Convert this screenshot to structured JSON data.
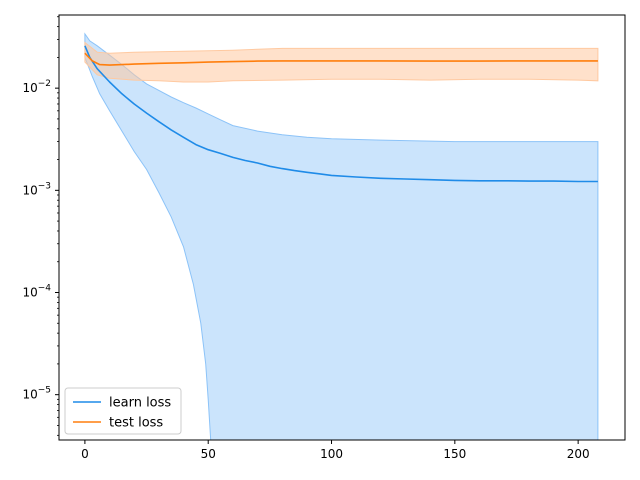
{
  "chart_data": {
    "type": "line",
    "title": "",
    "xlabel": "",
    "ylabel": "",
    "yscale": "log",
    "xlim": [
      -10.5,
      219
    ],
    "ylim": [
      3.6e-06,
      0.052
    ],
    "grid": false,
    "legend_position": "lower-left",
    "x_ticks": [
      0,
      50,
      100,
      150,
      200
    ],
    "x_tick_labels": [
      "0",
      "50",
      "100",
      "150",
      "200"
    ],
    "y_ticks": [
      1e-05,
      0.0001,
      0.001,
      0.01
    ],
    "y_tick_labels": [
      {
        "base": "10",
        "exp": "−5"
      },
      {
        "base": "10",
        "exp": "−4"
      },
      {
        "base": "10",
        "exp": "−3"
      },
      {
        "base": "10",
        "exp": "−2"
      }
    ],
    "series": [
      {
        "name": "learn loss",
        "color": "#1f8be8",
        "band_color": "#8cc3f8",
        "points": [
          [
            0,
            0.026
          ],
          [
            2,
            0.02
          ],
          [
            5,
            0.0155
          ],
          [
            10,
            0.0115
          ],
          [
            15,
            0.0088
          ],
          [
            20,
            0.007
          ],
          [
            25,
            0.0057
          ],
          [
            30,
            0.0047
          ],
          [
            35,
            0.0039
          ],
          [
            40,
            0.0033
          ],
          [
            45,
            0.0028
          ],
          [
            50,
            0.0025
          ],
          [
            55,
            0.0023
          ],
          [
            60,
            0.0021
          ],
          [
            65,
            0.00196
          ],
          [
            70,
            0.00185
          ],
          [
            75,
            0.00172
          ],
          [
            80,
            0.00163
          ],
          [
            85,
            0.00156
          ],
          [
            90,
            0.0015
          ],
          [
            95,
            0.00145
          ],
          [
            100,
            0.0014
          ],
          [
            110,
            0.00135
          ],
          [
            120,
            0.00131
          ],
          [
            130,
            0.00129
          ],
          [
            140,
            0.00127
          ],
          [
            150,
            0.00125
          ],
          [
            160,
            0.00124
          ],
          [
            170,
            0.00124
          ],
          [
            180,
            0.00123
          ],
          [
            190,
            0.00123
          ],
          [
            200,
            0.00122
          ],
          [
            208,
            0.00122
          ]
        ],
        "upper": [
          [
            0,
            0.034
          ],
          [
            2,
            0.029
          ],
          [
            5,
            0.026
          ],
          [
            10,
            0.021
          ],
          [
            15,
            0.017
          ],
          [
            20,
            0.0135
          ],
          [
            25,
            0.011
          ],
          [
            30,
            0.0095
          ],
          [
            35,
            0.0082
          ],
          [
            40,
            0.0072
          ],
          [
            45,
            0.0064
          ],
          [
            50,
            0.0056
          ],
          [
            55,
            0.0049
          ],
          [
            60,
            0.0043
          ],
          [
            70,
            0.0038
          ],
          [
            80,
            0.0035
          ],
          [
            90,
            0.0033
          ],
          [
            100,
            0.0032
          ],
          [
            120,
            0.0031
          ],
          [
            150,
            0.003
          ],
          [
            180,
            0.003
          ],
          [
            208,
            0.003
          ]
        ],
        "lower": [
          [
            0,
            0.02
          ],
          [
            3,
            0.013
          ],
          [
            6,
            0.0088
          ],
          [
            10,
            0.006
          ],
          [
            15,
            0.0038
          ],
          [
            20,
            0.0024
          ],
          [
            25,
            0.0016
          ],
          [
            30,
            0.00095
          ],
          [
            35,
            0.00055
          ],
          [
            40,
            0.00028
          ],
          [
            44,
            0.00012
          ],
          [
            47,
            5e-05
          ],
          [
            49,
            2e-05
          ],
          [
            50,
            9e-06
          ],
          [
            51,
            3.6e-06
          ],
          [
            52,
            3.6e-06
          ],
          [
            208,
            3.6e-06
          ]
        ]
      },
      {
        "name": "test loss",
        "color": "#ff7f0e",
        "band_color": "#ffc9a0",
        "points": [
          [
            0,
            0.022
          ],
          [
            3,
            0.0185
          ],
          [
            6,
            0.017
          ],
          [
            10,
            0.0168
          ],
          [
            15,
            0.017
          ],
          [
            20,
            0.0172
          ],
          [
            30,
            0.0175
          ],
          [
            40,
            0.0177
          ],
          [
            50,
            0.018
          ],
          [
            60,
            0.0182
          ],
          [
            70,
            0.0184
          ],
          [
            80,
            0.0185
          ],
          [
            90,
            0.0185
          ],
          [
            100,
            0.0185
          ],
          [
            120,
            0.0185
          ],
          [
            140,
            0.0184
          ],
          [
            160,
            0.0184
          ],
          [
            180,
            0.0185
          ],
          [
            200,
            0.0185
          ],
          [
            208,
            0.0185
          ]
        ],
        "upper": [
          [
            0,
            0.028
          ],
          [
            5,
            0.0225
          ],
          [
            10,
            0.022
          ],
          [
            20,
            0.0225
          ],
          [
            40,
            0.023
          ],
          [
            60,
            0.0235
          ],
          [
            80,
            0.0245
          ],
          [
            100,
            0.0245
          ],
          [
            130,
            0.0245
          ],
          [
            160,
            0.0245
          ],
          [
            190,
            0.0245
          ],
          [
            208,
            0.0245
          ]
        ],
        "lower": [
          [
            0,
            0.018
          ],
          [
            5,
            0.0135
          ],
          [
            10,
            0.0125
          ],
          [
            20,
            0.012
          ],
          [
            30,
            0.0118
          ],
          [
            40,
            0.0115
          ],
          [
            50,
            0.0115
          ],
          [
            60,
            0.0118
          ],
          [
            80,
            0.012
          ],
          [
            100,
            0.0122
          ],
          [
            120,
            0.0122
          ],
          [
            140,
            0.012
          ],
          [
            160,
            0.0122
          ],
          [
            180,
            0.0122
          ],
          [
            200,
            0.012
          ],
          [
            208,
            0.0118
          ]
        ]
      }
    ],
    "overlap_band_color": "#c4c4c4"
  }
}
